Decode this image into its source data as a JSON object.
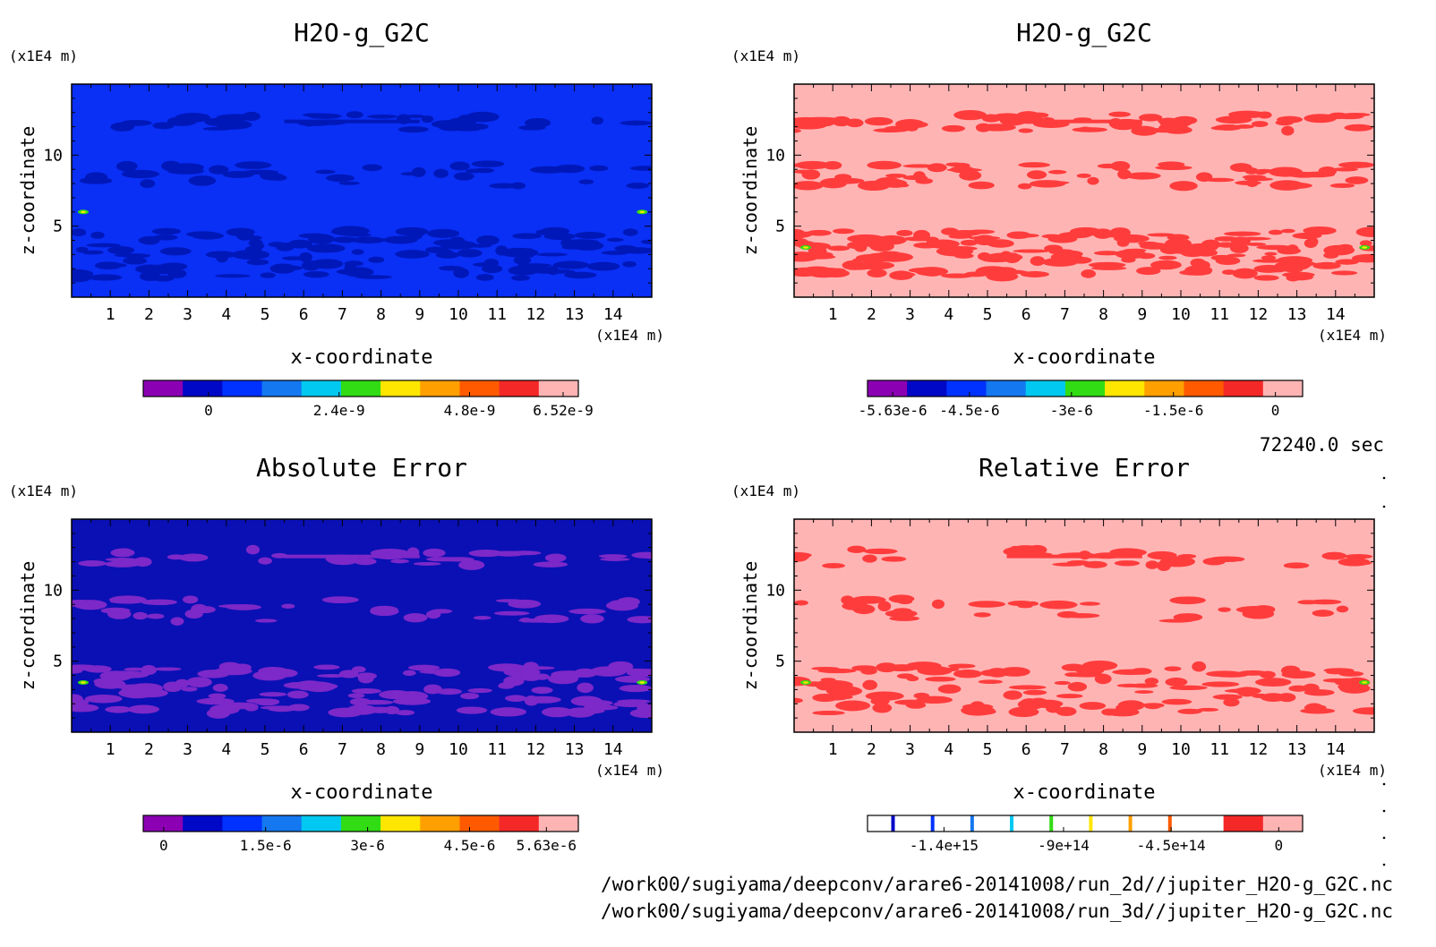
{
  "time_label": "72240.0 sec",
  "file_paths": [
    "/work00/sugiyama/deepconv/arare6-20141008/run_2d//jupiter_H2O-g_G2C.nc",
    "/work00/sugiyama/deepconv/arare6-20141008/run_3d//jupiter_H2O-g_G2C.nc"
  ],
  "chart_data": [
    {
      "type": "heatmap",
      "title": "H2O-g_G2C",
      "xlabel": "x-coordinate",
      "ylabel": "z-coordinate",
      "x_unit": "(x1E4 m)",
      "y_unit": "(x1E4 m)",
      "xlim": [
        0,
        15
      ],
      "ylim": [
        0,
        15
      ],
      "x_ticks": [
        1,
        2,
        3,
        4,
        5,
        6,
        7,
        8,
        9,
        10,
        11,
        12,
        13,
        14
      ],
      "y_ticks": [
        5,
        10
      ],
      "background_color": "#0a2ff5",
      "pattern_color": "#0018b8",
      "pattern_style": "dark",
      "colorbar": {
        "labels": [
          "0",
          "2.4e-9",
          "4.8e-9",
          "6.52e-9"
        ],
        "label_values": [
          0,
          2.4e-09,
          4.8e-09,
          6.52e-09
        ],
        "range": [
          -1.2e-09,
          6.8e-09
        ],
        "colors": [
          "#8c00b4",
          "#0008c8",
          "#0032ff",
          "#1478f0",
          "#00c8f0",
          "#32dc14",
          "#ffe600",
          "#ffa000",
          "#ff5a00",
          "#f52828",
          "#ffb4b4"
        ]
      }
    },
    {
      "type": "heatmap",
      "title": "H2O-g_G2C",
      "xlabel": "x-coordinate",
      "ylabel": "z-coordinate",
      "x_unit": "(x1E4 m)",
      "y_unit": "(x1E4 m)",
      "xlim": [
        0,
        15
      ],
      "ylim": [
        0,
        15
      ],
      "x_ticks": [
        1,
        2,
        3,
        4,
        5,
        6,
        7,
        8,
        9,
        10,
        11,
        12,
        13,
        14
      ],
      "y_ticks": [
        5,
        10
      ],
      "background_color": "#ffb4b4",
      "pattern_color": "#ff3c3c",
      "pattern_style": "dense",
      "colorbar": {
        "labels": [
          "-5.63e-6",
          "-4.5e-6",
          "-3e-6",
          "-1.5e-6",
          "0"
        ],
        "label_values": [
          -5.63e-06,
          -4.5e-06,
          -3e-06,
          -1.5e-06,
          0
        ],
        "range": [
          -6e-06,
          4e-07
        ],
        "colors": [
          "#8c00b4",
          "#0008c8",
          "#0032ff",
          "#1478f0",
          "#00c8f0",
          "#32dc14",
          "#ffe600",
          "#ffa000",
          "#ff5a00",
          "#f52828",
          "#ffb4b4"
        ]
      }
    },
    {
      "type": "heatmap",
      "title": "Absolute Error",
      "xlabel": "x-coordinate",
      "ylabel": "z-coordinate",
      "x_unit": "(x1E4 m)",
      "y_unit": "(x1E4 m)",
      "xlim": [
        0,
        15
      ],
      "ylim": [
        0,
        15
      ],
      "x_ticks": [
        1,
        2,
        3,
        4,
        5,
        6,
        7,
        8,
        9,
        10,
        11,
        12,
        13,
        14
      ],
      "y_ticks": [
        5,
        10
      ],
      "background_color": "#0a10b4",
      "pattern_color": "#7d28c8",
      "pattern_style": "light",
      "colorbar": {
        "labels": [
          "0",
          "1.5e-6",
          "3e-6",
          "4.5e-6",
          "5.63e-6"
        ],
        "label_values": [
          0,
          1.5e-06,
          3e-06,
          4.5e-06,
          5.63e-06
        ],
        "range": [
          -3e-07,
          6.1e-06
        ],
        "colors": [
          "#8c00b4",
          "#0008c8",
          "#0032ff",
          "#1478f0",
          "#00c8f0",
          "#32dc14",
          "#ffe600",
          "#ffa000",
          "#ff5a00",
          "#f52828",
          "#ffb4b4"
        ]
      }
    },
    {
      "type": "heatmap",
      "title": "Relative Error",
      "xlabel": "x-coordinate",
      "ylabel": "z-coordinate",
      "x_unit": "(x1E4 m)",
      "y_unit": "(x1E4 m)",
      "xlim": [
        0,
        15
      ],
      "ylim": [
        0,
        15
      ],
      "x_ticks": [
        1,
        2,
        3,
        4,
        5,
        6,
        7,
        8,
        9,
        10,
        11,
        12,
        13,
        14
      ],
      "y_ticks": [
        5,
        10
      ],
      "background_color": "#ffb4b4",
      "pattern_color": "#ff3c3c",
      "pattern_style": "medium",
      "colorbar": {
        "labels": [
          "-1.4e+15",
          "-9e+14",
          "-4.5e+14",
          "0"
        ],
        "label_values": [
          -1400000000000000.0,
          -900000000000000.0,
          -450000000000000.0,
          0
        ],
        "range": [
          -1720000000000000.0,
          100000000000000.0
        ],
        "colors": [
          "#ffffff",
          "#ffffff",
          "#ffffff",
          "#ffffff",
          "#ffffff",
          "#ffffff",
          "#ffffff",
          "#ffffff",
          "#ffffff",
          "#f52828",
          "#ffb4b4"
        ],
        "stripes": [
          "#0008c8",
          "#0032ff",
          "#1478f0",
          "#00c8f0",
          "#32dc14",
          "#ffe600",
          "#ffa000",
          "#ff5a00"
        ]
      }
    }
  ]
}
